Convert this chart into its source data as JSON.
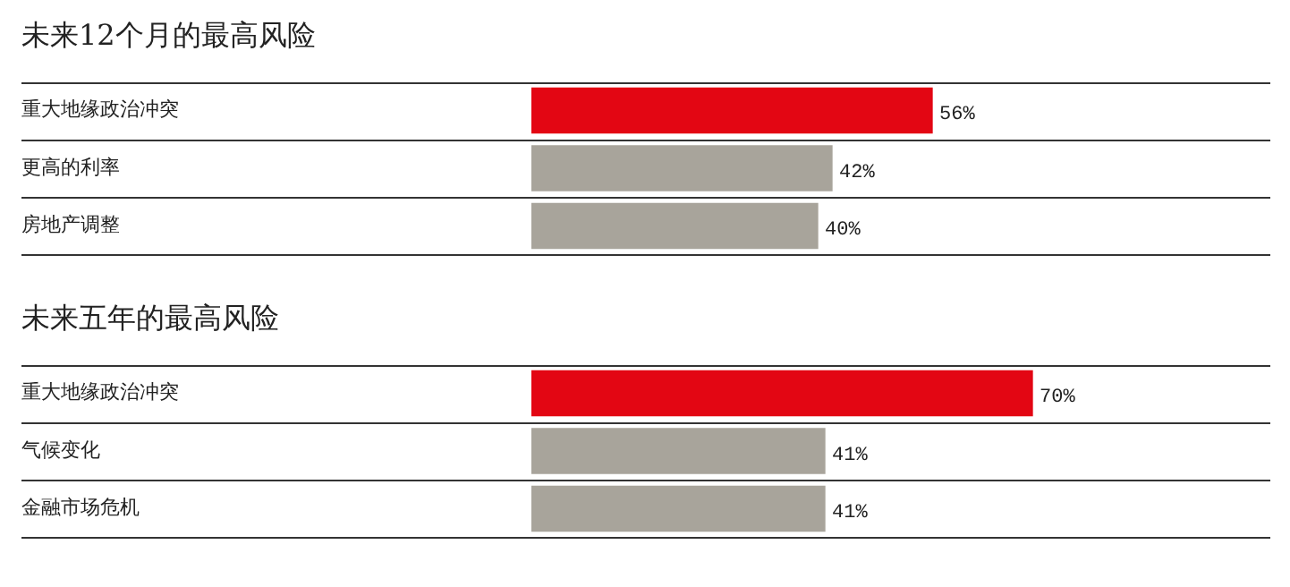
{
  "chart_data": [
    {
      "type": "bar",
      "orientation": "horizontal",
      "title": "未来12个月的最高风险",
      "categories": [
        "重大地缘政治冲突",
        "更高的利率",
        "房地产调整"
      ],
      "values": [
        56,
        42,
        40
      ],
      "colors": [
        "#e30613",
        "#a8a49b",
        "#a8a49b"
      ],
      "value_labels": [
        "56%",
        "42%",
        "40%"
      ],
      "tick_labels": "y",
      "grid": "y",
      "legend": false
    },
    {
      "type": "bar",
      "orientation": "horizontal",
      "title": "未来五年的最高风险",
      "categories": [
        "重大地缘政治冲突",
        "气候变化",
        "金融市场危机"
      ],
      "values": [
        70,
        41,
        41
      ],
      "colors": [
        "#e30613",
        "#a8a49b",
        "#a8a49b"
      ],
      "value_labels": [
        "70%",
        "41%",
        "41%"
      ],
      "tick_labels": "y",
      "grid": "y",
      "legend": false
    }
  ]
}
